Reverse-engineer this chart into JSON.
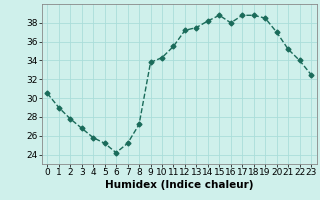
{
  "x": [
    0,
    1,
    2,
    3,
    4,
    5,
    6,
    7,
    8,
    9,
    10,
    11,
    12,
    13,
    14,
    15,
    16,
    17,
    18,
    19,
    20,
    21,
    22,
    23
  ],
  "y": [
    30.5,
    29.0,
    27.8,
    26.8,
    25.8,
    25.2,
    24.2,
    25.2,
    27.2,
    33.8,
    34.3,
    35.5,
    37.2,
    37.5,
    38.2,
    38.8,
    38.0,
    38.8,
    38.8,
    38.5,
    37.0,
    35.2,
    34.0,
    32.5
  ],
  "line_color": "#1a6b5a",
  "marker": "D",
  "marker_size": 2.5,
  "bg_color": "#cff0eb",
  "grid_color": "#aaddda",
  "xlabel": "Humidex (Indice chaleur)",
  "ylim": [
    23,
    40
  ],
  "xlim": [
    -0.5,
    23.5
  ],
  "yticks": [
    24,
    26,
    28,
    30,
    32,
    34,
    36,
    38
  ],
  "xticks": [
    0,
    1,
    2,
    3,
    4,
    5,
    6,
    7,
    8,
    9,
    10,
    11,
    12,
    13,
    14,
    15,
    16,
    17,
    18,
    19,
    20,
    21,
    22,
    23
  ],
  "tick_fontsize": 6.5,
  "xlabel_fontsize": 7.5,
  "line_width": 1.0
}
